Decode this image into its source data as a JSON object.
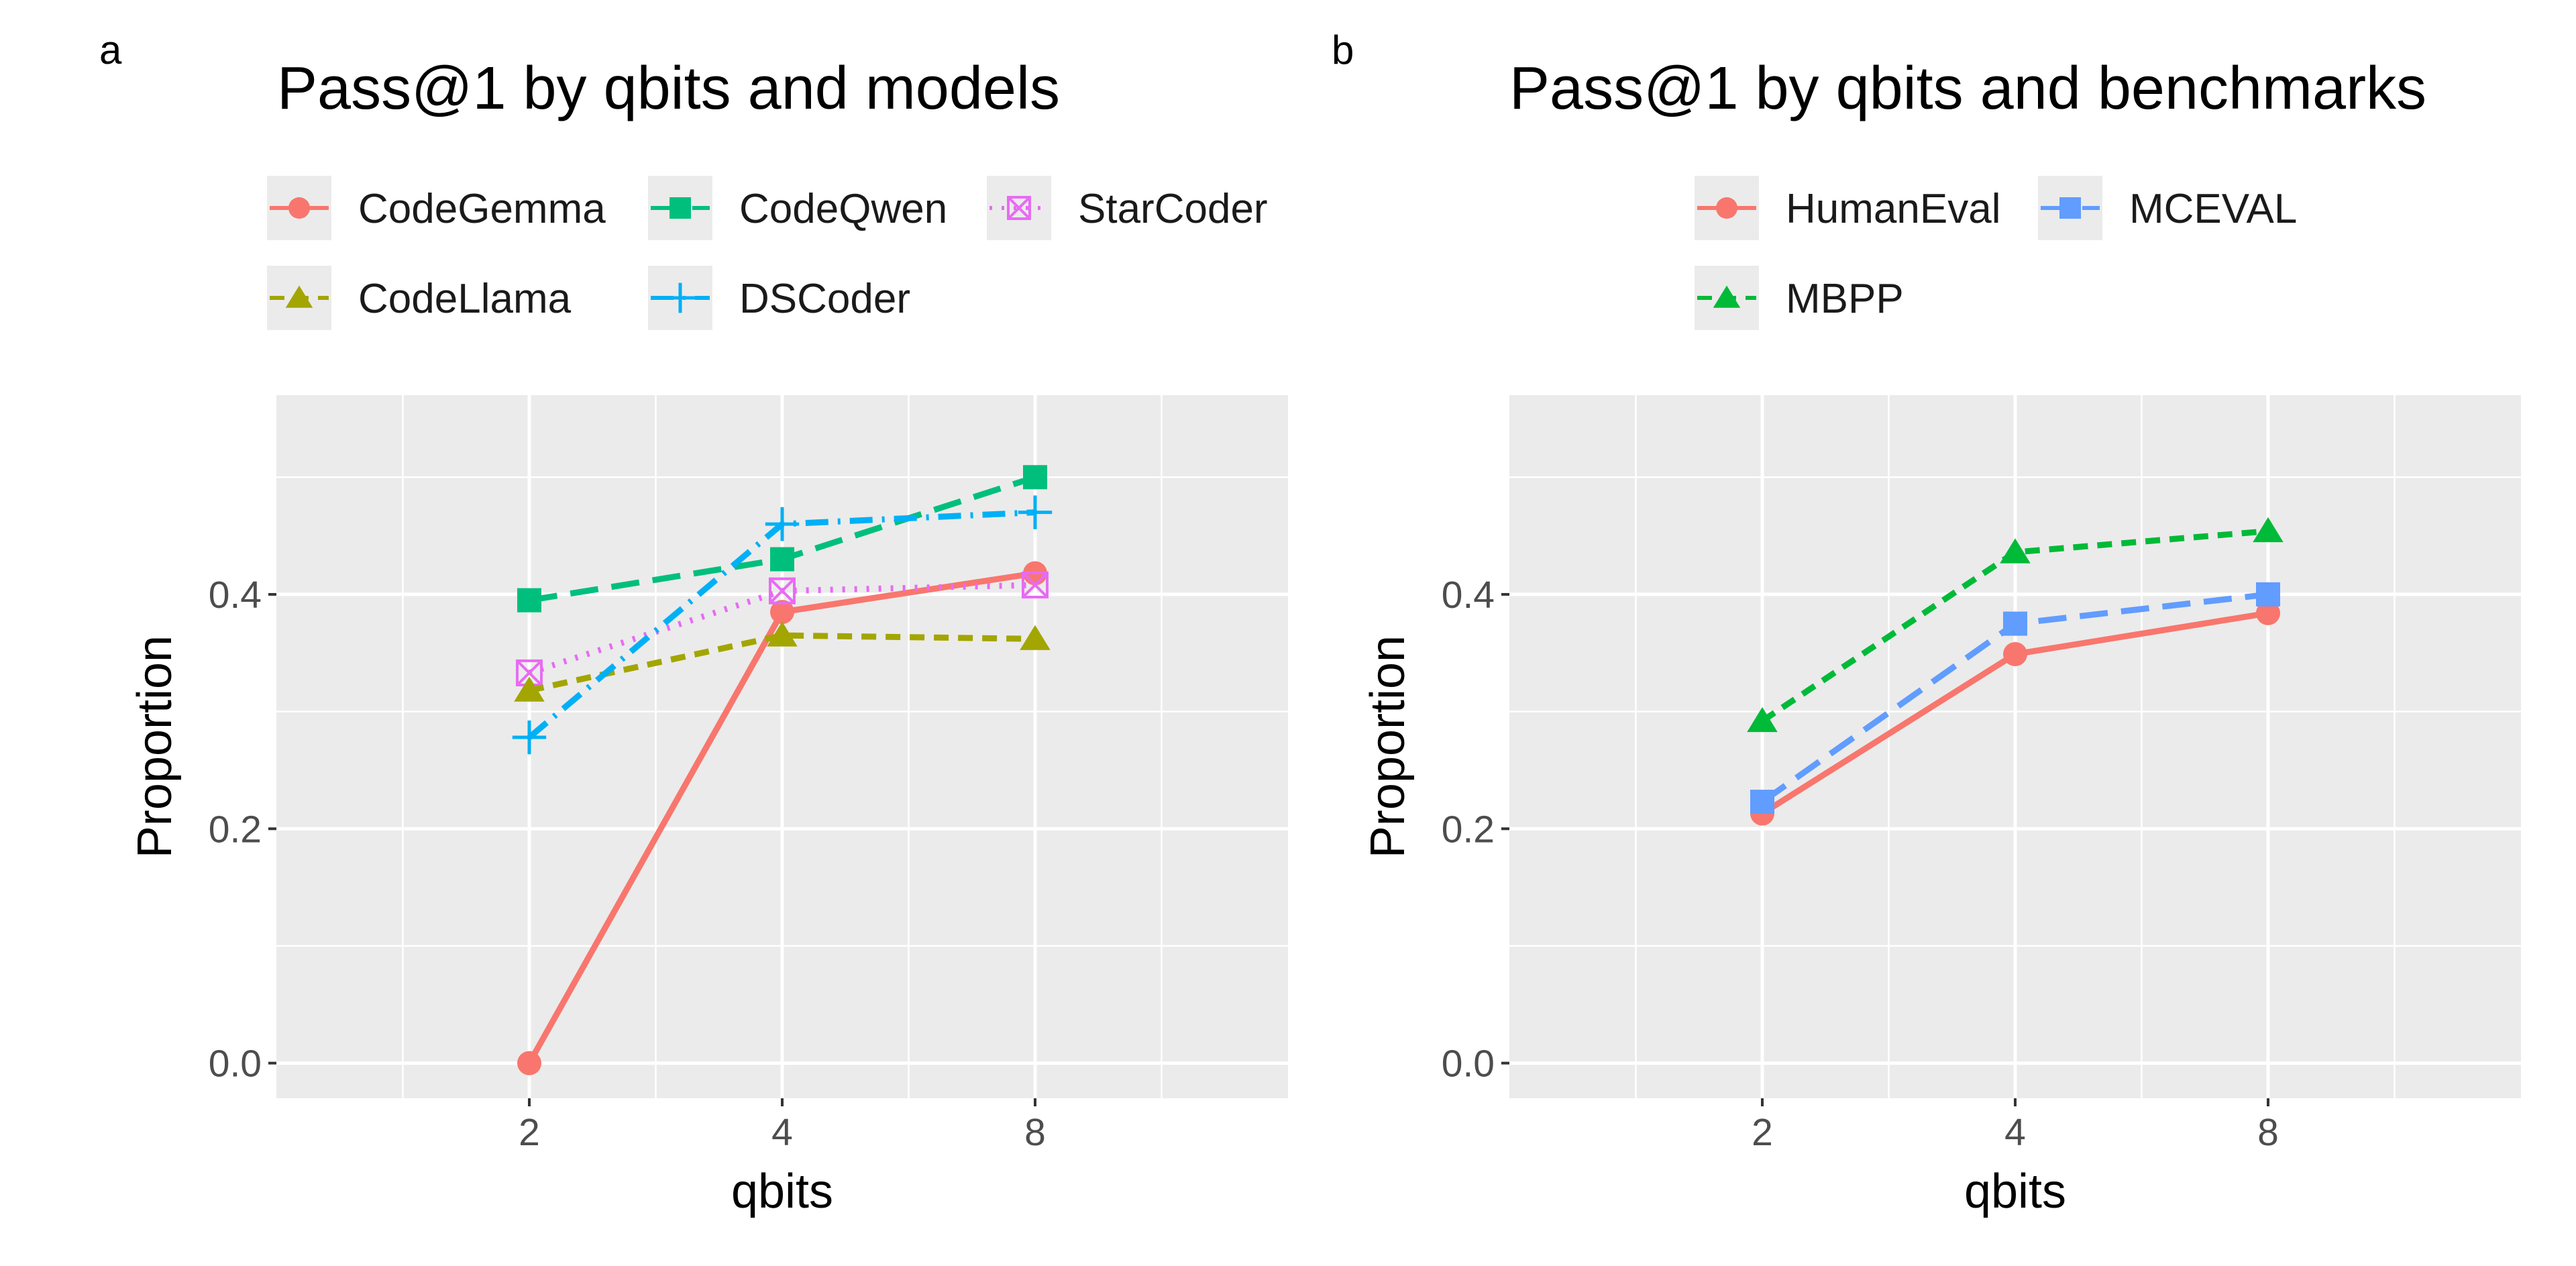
{
  "chart_data": [
    {
      "panel_label": "a",
      "type": "line",
      "title": "Pass@1 by qbits and models",
      "xlabel": "qbits",
      "ylabel": "Proportion",
      "categories": [
        "2",
        "4",
        "8"
      ],
      "ylim": [
        -0.03,
        0.57
      ],
      "yticks": [
        0.0,
        0.2,
        0.4
      ],
      "ytick_labels": [
        "0.0",
        "0.2",
        "0.4"
      ],
      "grid": true,
      "legend_position": "top",
      "series": [
        {
          "name": "CodeGemma",
          "values": [
            0.0,
            0.385,
            0.418
          ],
          "color": "#F8766D",
          "marker": "circle",
          "dash": "solid"
        },
        {
          "name": "CodeQwen",
          "values": [
            0.395,
            0.43,
            0.5
          ],
          "color": "#00BF7D",
          "marker": "square",
          "dash": "longdash"
        },
        {
          "name": "StarCoder",
          "values": [
            0.333,
            0.403,
            0.408
          ],
          "color": "#E76BF3",
          "marker": "square-x",
          "dash": "dotted"
        },
        {
          "name": "CodeLlama",
          "values": [
            0.318,
            0.365,
            0.362
          ],
          "color": "#A3A500",
          "marker": "triangle",
          "dash": "dashed"
        },
        {
          "name": "DSCoder",
          "values": [
            0.278,
            0.46,
            0.47
          ],
          "color": "#00B0F6",
          "marker": "plus",
          "dash": "dotdash"
        }
      ]
    },
    {
      "panel_label": "b",
      "type": "line",
      "title": "Pass@1 by qbits and benchmarks",
      "xlabel": "qbits",
      "ylabel": "Proportion",
      "categories": [
        "2",
        "4",
        "8"
      ],
      "ylim": [
        -0.03,
        0.57
      ],
      "yticks": [
        0.0,
        0.2,
        0.4
      ],
      "ytick_labels": [
        "0.0",
        "0.2",
        "0.4"
      ],
      "grid": true,
      "legend_position": "top",
      "series": [
        {
          "name": "HumanEval",
          "values": [
            0.213,
            0.349,
            0.384
          ],
          "color": "#F8766D",
          "marker": "circle",
          "dash": "solid"
        },
        {
          "name": "MCEVAL",
          "values": [
            0.223,
            0.375,
            0.4
          ],
          "color": "#619CFF",
          "marker": "square",
          "dash": "longdash"
        },
        {
          "name": "MBPP",
          "values": [
            0.292,
            0.436,
            0.454
          ],
          "color": "#00BA38",
          "marker": "triangle",
          "dash": "dashed"
        }
      ]
    }
  ]
}
